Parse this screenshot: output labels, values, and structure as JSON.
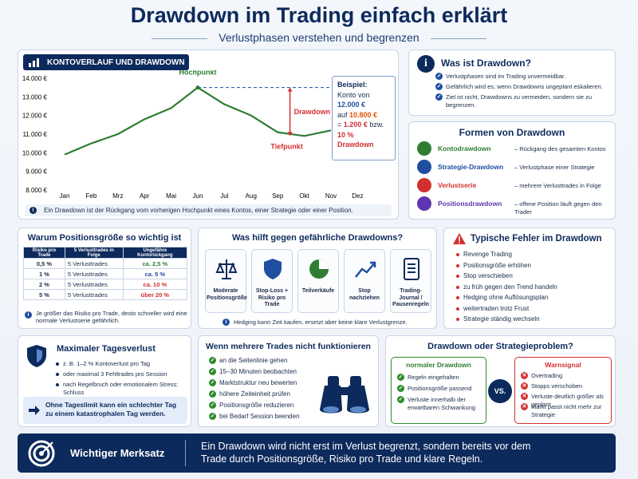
{
  "header": {
    "title": "Drawdown im Trading einfach erklärt",
    "subtitle": "Verlustphasen verstehen und begrenzen"
  },
  "chart_panel": {
    "heading": "KONTOVERLAUF UND DRAWDOWN",
    "note": "Ein Drawdown ist der Rückgang vom vorherigen Hochpunkt eines Kontos, einer Strategie oder einer Position.",
    "example": {
      "title": "Beispiel:",
      "l1": "Konto von",
      "v1": "12.000 €",
      "l2": "auf",
      "v2": "10.800 €",
      "l3": "=",
      "v3": "1.200 €",
      "l4": "bzw.",
      "v4": "10 % Drawdown"
    }
  },
  "chart_data": {
    "type": "line",
    "categories": [
      "Jan",
      "Feb",
      "Mrz",
      "Apr",
      "Mai",
      "Jun",
      "Jul",
      "Aug",
      "Sep",
      "Okt",
      "Nov",
      "Dez"
    ],
    "values": [
      9900,
      10500,
      11000,
      11800,
      12400,
      13500,
      12600,
      12000,
      11100,
      10900,
      11200,
      null
    ],
    "color": "#2e7d32",
    "ylim": [
      8000,
      14300
    ],
    "yticks": [
      {
        "value": 8000,
        "label": "8.000 €"
      },
      {
        "value": 9000,
        "label": "9.000 €"
      },
      {
        "value": 10000,
        "label": "10.000 €"
      },
      {
        "value": 11000,
        "label": "11.000 €"
      },
      {
        "value": 12000,
        "label": "12.000 €"
      },
      {
        "value": 13000,
        "label": "13.000 €"
      },
      {
        "value": 14000,
        "label": "14.000 €"
      }
    ],
    "grid": false,
    "annotations": {
      "peak": "Hochpunkt",
      "trough": "Tiefpunkt",
      "drawdown": "Drawdown"
    }
  },
  "what_is": {
    "title": "Was ist Drawdown?",
    "items": [
      "Verlustphasen sind im Trading unvermeidbar.",
      "Gefährlich wird es, wenn Drawdowns ungeplant eskalieren.",
      "Ziel ist nicht, Drawdowns zu vermeiden, sondern sie zu begrenzen."
    ]
  },
  "forms": {
    "title": "Formen von Drawdown",
    "items": [
      {
        "name": "Kontodrawdown",
        "desc": "– Rückgang des gesamten Kontos"
      },
      {
        "name": "Strategie-Drawdown",
        "desc": "– Verlustphase einer Strategie"
      },
      {
        "name": "Verlustserie",
        "desc": "– mehrere Verlusttrades in Folge"
      },
      {
        "name": "Positionsdrawdown",
        "desc": "– offene Position läuft gegen den Trader"
      }
    ]
  },
  "position_size": {
    "title": "Warum Positionsgröße so wichtig ist",
    "columns": [
      "Risiko pro Trade",
      "5 Verlusttrades in Folge",
      "Ungefähre Kontorückgang"
    ],
    "rows": [
      [
        "0,5 %",
        "5 Verlusttrades",
        "ca. 2,5 %"
      ],
      [
        "1 %",
        "5 Verlusttrades",
        "ca. 5 %"
      ],
      [
        "2 %",
        "5 Verlusttrades",
        "ca. 10 %"
      ],
      [
        "5 %",
        "5 Verlusttrades",
        "über 20 %"
      ]
    ],
    "note": "Je größer das Risiko pro Trade, desto schneller wird eine normale Verlustserie gefährlich."
  },
  "helps": {
    "title": "Was hilft gegen gefährliche Drawdowns?",
    "cards": [
      "Moderate Positionsgröße",
      "Stop-Loss + Risiko pro Trade",
      "Teilverkäufe",
      "Stop nachziehen",
      "Trading-Journal / Pausenregeln"
    ],
    "note": "Hedging kann Zeit kaufen, ersetzt aber keine klare Verlustgrenze."
  },
  "mistakes": {
    "title": "Typische Fehler im Drawdown",
    "items": [
      "Revenge Trading",
      "Positionsgröße erhöhen",
      "Stop verschieben",
      "zu früh gegen den Trend handeln",
      "Hedging ohne Auflösungsplan",
      "weitertraden trotz Frust",
      "Strategie ständig wechseln"
    ]
  },
  "daily_loss": {
    "title": "Maximaler Tagesverlust",
    "items": [
      "z. B. 1–2 % Kontoverlust pro Tag",
      "oder maximal 3 Fehltrades pro Session",
      "nach Regelbruch oder emotionalem Stress: Schluss"
    ],
    "callout": "Ohne Tageslimit kann ein schlechter Tag zu einem katastrophalen Tag werden."
  },
  "multiple_trades": {
    "title": "Wenn mehrere Trades nicht funktionieren",
    "items": [
      "an die Seitenlinie gehen",
      "15–30 Minuten beobachten",
      "Marktstruktur neu bewerten",
      "höhere Zeiteinheit prüfen",
      "Positionsgröße reduzieren",
      "bei Bedarf Session beenden"
    ]
  },
  "comparison": {
    "title": "Drawdown oder Strategieproblem?",
    "normal": {
      "title": "normaler Drawdown",
      "items": [
        "Regeln eingehalten",
        "Positionsgröße passend",
        "Verluste innerhalb der erwartbaren Schwankung"
      ]
    },
    "vs": "VS.",
    "warning": {
      "title": "Warnsignal",
      "items": [
        "Overtrading",
        "Stopps verschoben",
        "Verluste deutlich größer als geplant",
        "Markt passt nicht mehr zur Strategie"
      ]
    }
  },
  "banner": {
    "title": "Wichtiger Merksatz",
    "text": "Ein Drawdown wird nicht erst im Verlust begrenzt, sondern bereits vor dem Trade durch Positionsgröße, Risiko pro Trade und klare Regeln."
  }
}
